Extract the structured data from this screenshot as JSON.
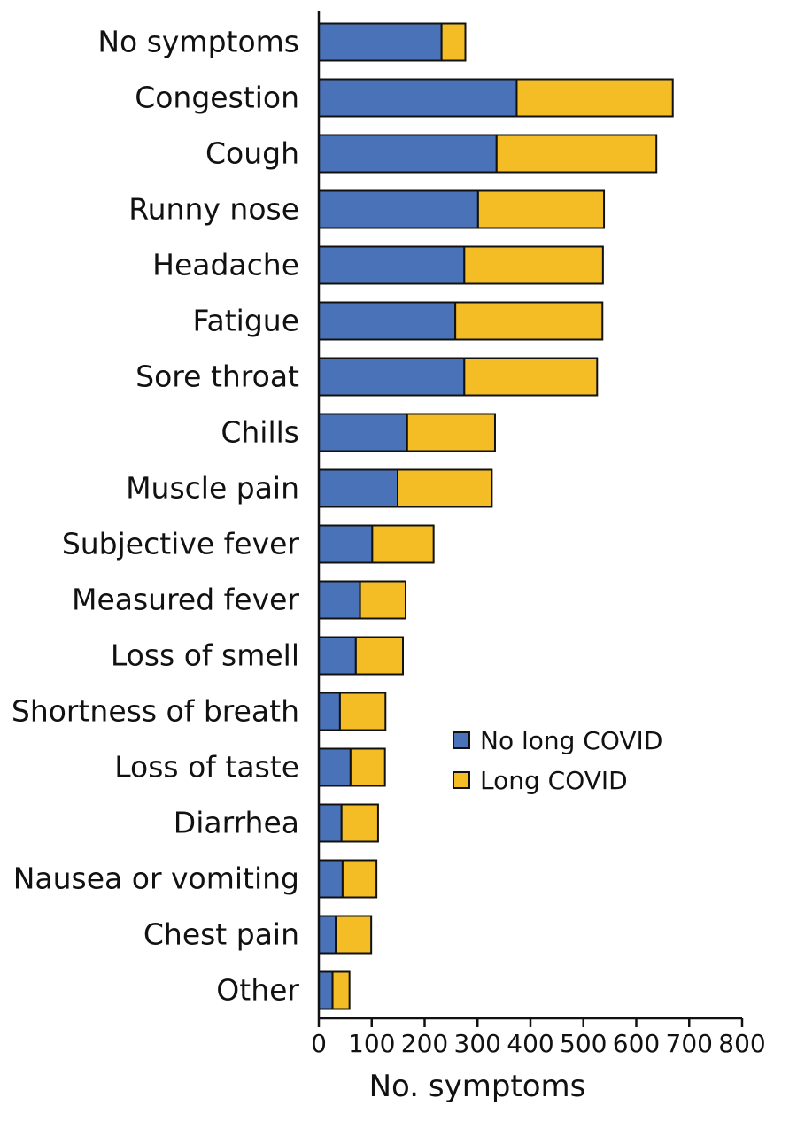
{
  "chart_data": {
    "type": "bar",
    "orientation": "horizontal",
    "stacked": true,
    "categories": [
      "No symptoms",
      "Congestion",
      "Cough",
      "Runny nose",
      "Headache",
      "Fatigue",
      "Sore throat",
      "Chills",
      "Muscle pain",
      "Subjective fever",
      "Measured fever",
      "Loss of smell",
      "Shortness of breath",
      "Loss of taste",
      "Diarrhea",
      "Nausea or vomiting",
      "Chest pain",
      "Other"
    ],
    "series": [
      {
        "name": "No long COVID",
        "color": "#4a72b8",
        "values": [
          232,
          374,
          336,
          301,
          275,
          258,
          275,
          167,
          149,
          101,
          78,
          70,
          40,
          60,
          43,
          45,
          32,
          26
        ]
      },
      {
        "name": "Long COVID",
        "color": "#f5bd25",
        "values": [
          45,
          295,
          302,
          238,
          262,
          278,
          251,
          166,
          178,
          116,
          86,
          89,
          86,
          65,
          69,
          64,
          67,
          32
        ]
      }
    ],
    "xlabel": "No. symptoms",
    "ylabel": "",
    "title": "",
    "xlim": [
      0,
      800
    ],
    "xticks": [
      0,
      100,
      200,
      300,
      400,
      500,
      600,
      700,
      800
    ],
    "grid": false,
    "legend_position": "right-middle"
  }
}
